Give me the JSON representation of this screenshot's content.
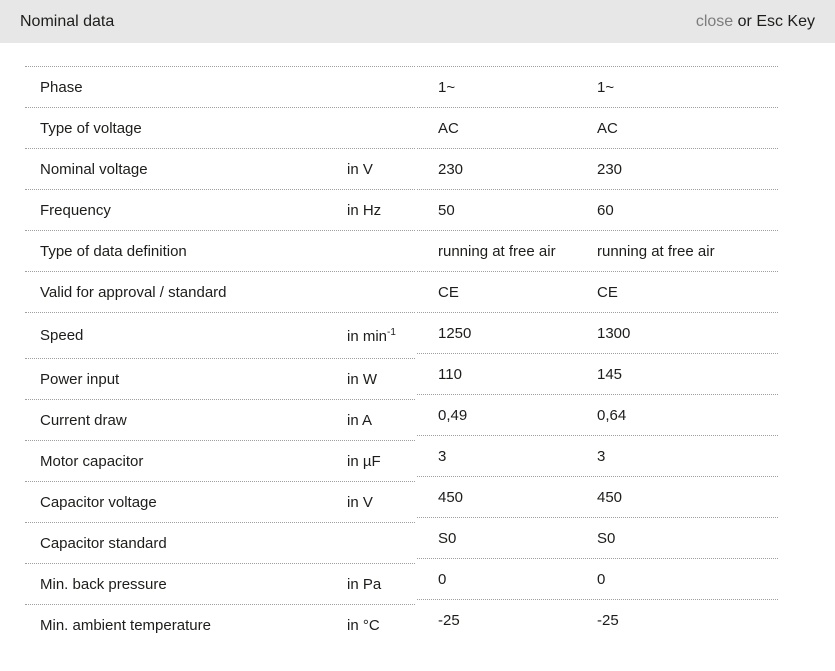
{
  "header": {
    "title": "Nominal data",
    "close_label": "close",
    "esc_label": "or Esc Key"
  },
  "colors": {
    "header_bg": "#e7e7e7",
    "text": "#1d1d1b",
    "close_link": "#7d7d7d",
    "divider": "#9f9f9f"
  },
  "table": {
    "rows": [
      {
        "label": "Phase",
        "unit": "",
        "unit_sup": "",
        "values": [
          "1~",
          "1~"
        ]
      },
      {
        "label": "Type of voltage",
        "unit": "",
        "unit_sup": "",
        "values": [
          "AC",
          "AC"
        ]
      },
      {
        "label": "Nominal voltage",
        "unit": "in V",
        "unit_sup": "",
        "values": [
          "230",
          "230"
        ]
      },
      {
        "label": "Frequency",
        "unit": "in Hz",
        "unit_sup": "",
        "values": [
          "50",
          "60"
        ]
      },
      {
        "label": "Type of data definition",
        "unit": "",
        "unit_sup": "",
        "values": [
          "running at free air",
          "running at free air"
        ]
      },
      {
        "label": "Valid for approval / standard",
        "unit": "",
        "unit_sup": "",
        "values": [
          "CE",
          "CE"
        ]
      },
      {
        "label": "Speed",
        "unit": "in min",
        "unit_sup": "-1",
        "values": [
          "1250",
          "1300"
        ]
      },
      {
        "label": "Power input",
        "unit": "in W",
        "unit_sup": "",
        "values": [
          "110",
          "145"
        ]
      },
      {
        "label": "Current draw",
        "unit": "in A",
        "unit_sup": "",
        "values": [
          "0,49",
          "0,64"
        ]
      },
      {
        "label": "Motor capacitor",
        "unit": "in µF",
        "unit_sup": "",
        "values": [
          "3",
          "3"
        ]
      },
      {
        "label": "Capacitor voltage",
        "unit": "in V",
        "unit_sup": "",
        "values": [
          "450",
          "450"
        ]
      },
      {
        "label": "Capacitor standard",
        "unit": "",
        "unit_sup": "",
        "values": [
          "S0",
          "S0"
        ]
      },
      {
        "label": "Min. back pressure",
        "unit": "in Pa",
        "unit_sup": "",
        "values": [
          "0",
          "0"
        ]
      },
      {
        "label": "Min. ambient temperature",
        "unit": "in °C",
        "unit_sup": "",
        "values": [
          "-25",
          "-25"
        ]
      }
    ]
  }
}
